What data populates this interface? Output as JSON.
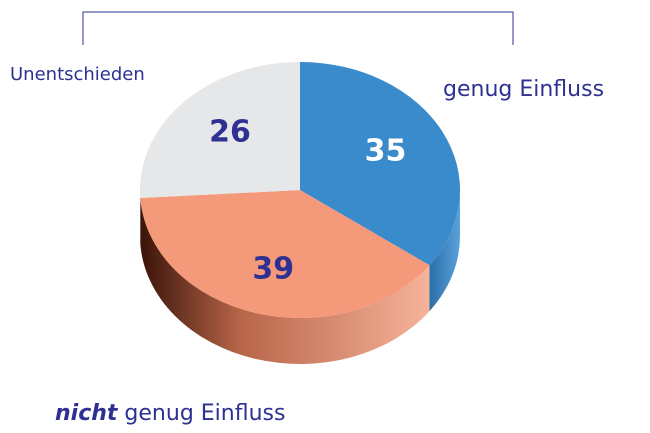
{
  "chart_data": {
    "type": "pie",
    "categories": [
      "genug Einfluss",
      "nicht genug Einfluss",
      "Unentschieden"
    ],
    "values": [
      35,
      39,
      26
    ],
    "colors": [
      "#3a8bcc",
      "#f4997a",
      "#e6e7e9"
    ],
    "value_label_colors": [
      "#ffffff",
      "#2e3192",
      "#2e3192"
    ],
    "emphasize_first_word": [
      false,
      true,
      false
    ]
  }
}
